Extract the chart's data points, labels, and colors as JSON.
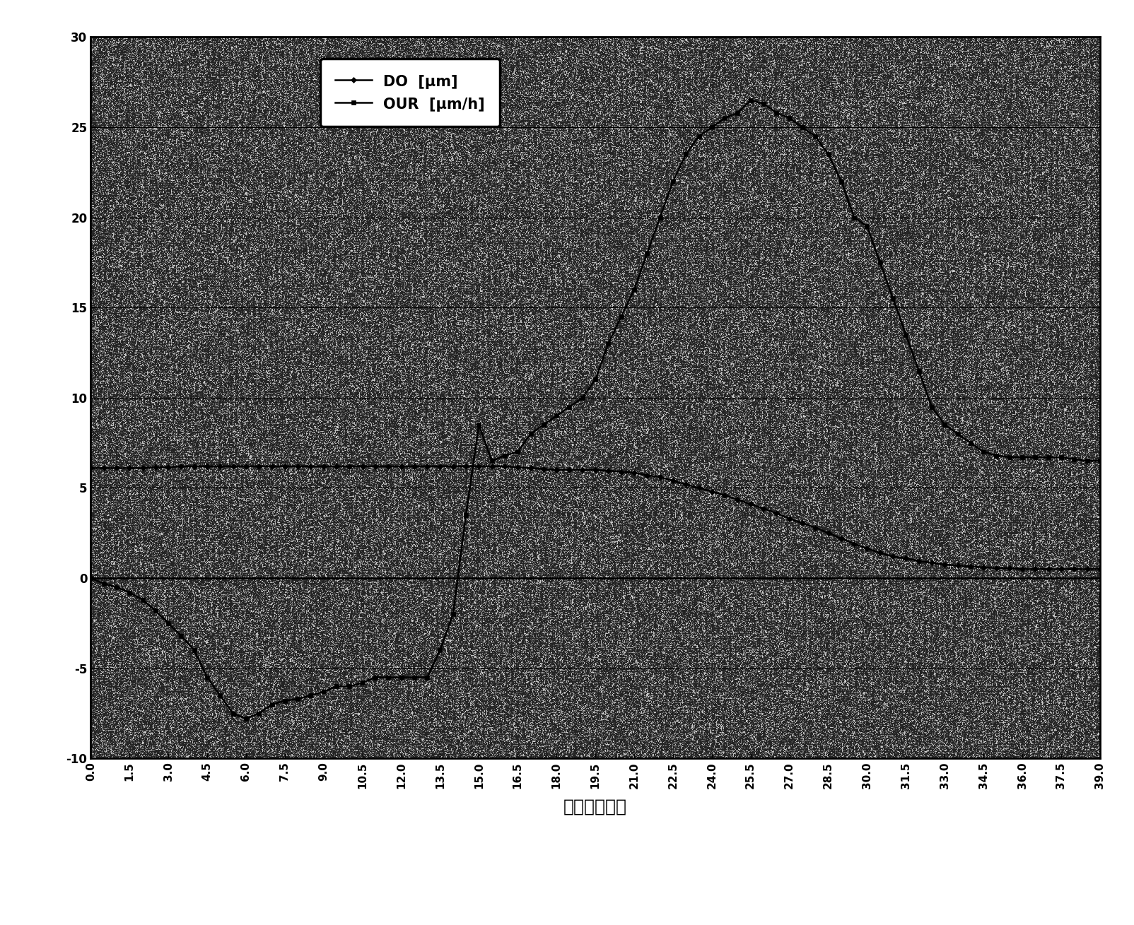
{
  "title": "",
  "xlabel": "时间（分钟）",
  "ylabel": "",
  "legend_do": "DO  [μm]",
  "legend_our": "OUR  [μm/h]",
  "ylim": [
    -10,
    30
  ],
  "xlim": [
    0.0,
    39.0
  ],
  "yticks": [
    -10,
    -5,
    0,
    5,
    10,
    15,
    20,
    25,
    30
  ],
  "xtick_labels": [
    "0.0",
    "1.5",
    "3.0",
    "4.5",
    "6.0",
    "7.5",
    "9.0",
    "10.5",
    "12.0",
    "13.5",
    "15.0",
    "16.5",
    "18.0",
    "19.5",
    "21.0",
    "22.5",
    "24.0",
    "25.5",
    "27.0",
    "28.5",
    "30.0",
    "31.5",
    "33.0",
    "34.5",
    "36.0",
    "37.5",
    "39.0"
  ],
  "xtick_vals": [
    0.0,
    1.5,
    3.0,
    4.5,
    6.0,
    7.5,
    9.0,
    10.5,
    12.0,
    13.5,
    15.0,
    16.5,
    18.0,
    19.5,
    21.0,
    22.5,
    24.0,
    25.5,
    27.0,
    28.5,
    30.0,
    31.5,
    33.0,
    34.5,
    36.0,
    37.5,
    39.0
  ],
  "background_color": "#b8b8b8",
  "line_color": "#000000",
  "do_x": [
    0.0,
    0.5,
    1.0,
    1.5,
    2.0,
    2.5,
    3.0,
    3.5,
    4.0,
    4.5,
    5.0,
    5.5,
    6.0,
    6.5,
    7.0,
    7.5,
    8.0,
    8.5,
    9.0,
    9.5,
    10.0,
    10.5,
    11.0,
    11.5,
    12.0,
    12.5,
    13.0,
    13.5,
    14.0,
    14.5,
    15.0,
    15.5,
    16.0,
    16.5,
    17.0,
    17.5,
    18.0,
    18.5,
    19.0,
    19.5,
    20.0,
    20.5,
    21.0,
    21.5,
    22.0,
    22.5,
    23.0,
    23.5,
    24.0,
    24.5,
    25.0,
    25.5,
    26.0,
    26.5,
    27.0,
    27.5,
    28.0,
    28.5,
    29.0,
    29.5,
    30.0,
    30.5,
    31.0,
    31.5,
    32.0,
    32.5,
    33.0,
    33.5,
    34.0,
    34.5,
    35.0,
    35.5,
    36.0,
    36.5,
    37.0,
    37.5,
    38.0,
    38.5,
    39.0
  ],
  "do_y": [
    6.1,
    6.1,
    6.1,
    6.1,
    6.1,
    6.15,
    6.15,
    6.2,
    6.2,
    6.2,
    6.2,
    6.2,
    6.2,
    6.2,
    6.2,
    6.2,
    6.2,
    6.2,
    6.2,
    6.2,
    6.2,
    6.2,
    6.2,
    6.2,
    6.2,
    6.2,
    6.2,
    6.2,
    6.2,
    6.2,
    6.2,
    6.2,
    6.2,
    6.15,
    6.1,
    6.05,
    6.0,
    6.0,
    6.0,
    6.0,
    5.95,
    5.9,
    5.85,
    5.7,
    5.6,
    5.4,
    5.2,
    5.0,
    4.8,
    4.6,
    4.35,
    4.1,
    3.85,
    3.6,
    3.3,
    3.05,
    2.8,
    2.5,
    2.2,
    1.9,
    1.65,
    1.4,
    1.2,
    1.1,
    0.95,
    0.85,
    0.75,
    0.7,
    0.65,
    0.6,
    0.55,
    0.55,
    0.5,
    0.5,
    0.5,
    0.5,
    0.5,
    0.5,
    0.5
  ],
  "our_x": [
    0.0,
    0.5,
    1.0,
    1.5,
    2.0,
    2.5,
    3.0,
    3.5,
    4.0,
    4.5,
    5.0,
    5.5,
    6.0,
    6.5,
    7.0,
    7.5,
    8.0,
    8.5,
    9.0,
    9.5,
    10.0,
    10.5,
    11.0,
    11.5,
    12.0,
    12.5,
    13.0,
    13.5,
    14.0,
    14.5,
    15.0,
    15.5,
    16.0,
    16.5,
    17.0,
    17.5,
    18.0,
    18.5,
    19.0,
    19.5,
    20.0,
    20.5,
    21.0,
    21.5,
    22.0,
    22.5,
    23.0,
    23.5,
    24.0,
    24.5,
    25.0,
    25.5,
    26.0,
    26.5,
    27.0,
    27.5,
    28.0,
    28.5,
    29.0,
    29.5,
    30.0,
    30.5,
    31.0,
    31.5,
    32.0,
    32.5,
    33.0,
    33.5,
    34.0,
    34.5,
    35.0,
    35.5,
    36.0,
    36.5,
    37.0,
    37.5,
    38.0,
    38.5,
    39.0
  ],
  "our_y": [
    0.0,
    -0.3,
    -0.5,
    -0.8,
    -1.2,
    -1.8,
    -2.5,
    -3.2,
    -4.0,
    -5.5,
    -6.5,
    -7.5,
    -7.8,
    -7.5,
    -7.0,
    -6.8,
    -6.7,
    -6.5,
    -6.3,
    -6.0,
    -6.0,
    -5.8,
    -5.5,
    -5.5,
    -5.5,
    -5.5,
    -5.5,
    -4.0,
    -2.0,
    3.5,
    8.5,
    6.5,
    6.8,
    7.0,
    8.0,
    8.5,
    9.0,
    9.5,
    10.0,
    11.0,
    13.0,
    14.5,
    16.0,
    18.0,
    20.0,
    22.0,
    23.5,
    24.5,
    25.0,
    25.5,
    25.8,
    26.5,
    26.3,
    25.8,
    25.5,
    25.0,
    24.5,
    23.5,
    22.0,
    20.0,
    19.5,
    17.5,
    15.5,
    13.5,
    11.5,
    9.5,
    8.5,
    8.0,
    7.5,
    7.0,
    6.8,
    6.7,
    6.7,
    6.7,
    6.7,
    6.7,
    6.6,
    6.5,
    6.5
  ]
}
